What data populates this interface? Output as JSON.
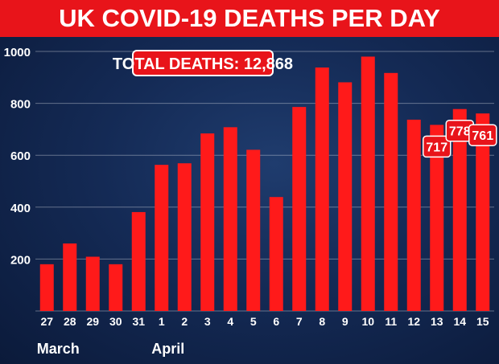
{
  "chart_data": {
    "type": "bar",
    "title": "UK COVID-19 DEATHS PER DAY",
    "annotation": "TOTAL DEATHS: 12,868",
    "xlabel": "",
    "ylabel": "",
    "ylim": [
      0,
      1000
    ],
    "yticks": [
      200,
      400,
      600,
      800,
      1000
    ],
    "grid": true,
    "categories": [
      "27",
      "28",
      "29",
      "30",
      "31",
      "1",
      "2",
      "3",
      "4",
      "5",
      "6",
      "7",
      "8",
      "9",
      "10",
      "11",
      "12",
      "13",
      "14",
      "15"
    ],
    "values": [
      180,
      260,
      209,
      180,
      381,
      563,
      569,
      684,
      708,
      621,
      439,
      786,
      938,
      881,
      980,
      917,
      737,
      717,
      778,
      761
    ],
    "data_labels": [
      {
        "index": 17,
        "text": "717"
      },
      {
        "index": 18,
        "text": "778"
      },
      {
        "index": 19,
        "text": "761"
      }
    ],
    "group_labels": [
      {
        "index": 0,
        "text": "March"
      },
      {
        "index": 5,
        "text": "April"
      }
    ],
    "colors": {
      "bar": "#ff1a1a",
      "banner": "#e8141a",
      "grid": "#ffffff",
      "text": "#ffffff"
    }
  }
}
